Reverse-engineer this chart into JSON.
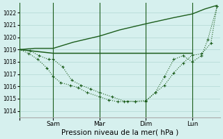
{
  "xlabel": "Pression niveau de la mer( hPa )",
  "ylim": [
    1013.5,
    1022.8
  ],
  "yticks": [
    1014,
    1015,
    1016,
    1017,
    1018,
    1019,
    1020,
    1021,
    1022
  ],
  "background_color": "#d6f0ee",
  "grid_color": "#b8dbd8",
  "line_color": "#1a5c1a",
  "vline_x": [
    0.0,
    0.22,
    0.52,
    0.82,
    1.12
  ],
  "vline_labels": [
    "",
    "Sam",
    "Mar",
    "Dim",
    "Lun"
  ],
  "xlim": [
    0.0,
    1.3
  ],
  "flat_line": {
    "x": [
      0.0,
      0.22,
      0.3,
      0.4,
      0.52,
      0.62,
      0.72,
      0.82,
      0.92,
      1.02,
      1.12
    ],
    "y": [
      1019.0,
      1018.7,
      1018.7,
      1018.7,
      1018.7,
      1018.7,
      1018.7,
      1018.7,
      1018.7,
      1018.7,
      1018.7
    ]
  },
  "rising_line": {
    "x": [
      0.0,
      0.1,
      0.22,
      0.35,
      0.52,
      0.65,
      0.82,
      1.0,
      1.12,
      1.2,
      1.28
    ],
    "y": [
      1019.0,
      1019.1,
      1019.1,
      1019.6,
      1020.1,
      1020.6,
      1021.1,
      1021.6,
      1021.9,
      1022.3,
      1022.6
    ]
  },
  "series_a_x": [
    0.0,
    0.07,
    0.13,
    0.19,
    0.22,
    0.28,
    0.34,
    0.4,
    0.46,
    0.52,
    0.6,
    0.68,
    0.75,
    0.82,
    0.88,
    0.94,
    1.0,
    1.06,
    1.12,
    1.18,
    1.24,
    1.28
  ],
  "series_a_y": [
    1019.0,
    1018.9,
    1018.5,
    1018.2,
    1018.2,
    1017.6,
    1016.5,
    1016.1,
    1015.8,
    1015.5,
    1015.15,
    1014.8,
    1014.8,
    1014.85,
    1015.5,
    1016.1,
    1017.1,
    1017.9,
    1018.55,
    1018.65,
    1019.5,
    1022.5
  ],
  "series_b_x": [
    0.0,
    0.06,
    0.12,
    0.18,
    0.22,
    0.27,
    0.33,
    0.38,
    0.44,
    0.52,
    0.58,
    0.64,
    0.7,
    0.75,
    0.82,
    0.88,
    0.94,
    1.0,
    1.06,
    1.12,
    1.18,
    1.22,
    1.28
  ],
  "series_b_y": [
    1019.0,
    1018.7,
    1018.2,
    1017.5,
    1016.8,
    1016.3,
    1016.1,
    1015.9,
    1015.5,
    1015.15,
    1014.9,
    1014.75,
    1014.78,
    1014.75,
    1014.8,
    1015.5,
    1016.8,
    1018.2,
    1018.5,
    1018.0,
    1018.5,
    1019.8,
    1022.5
  ]
}
